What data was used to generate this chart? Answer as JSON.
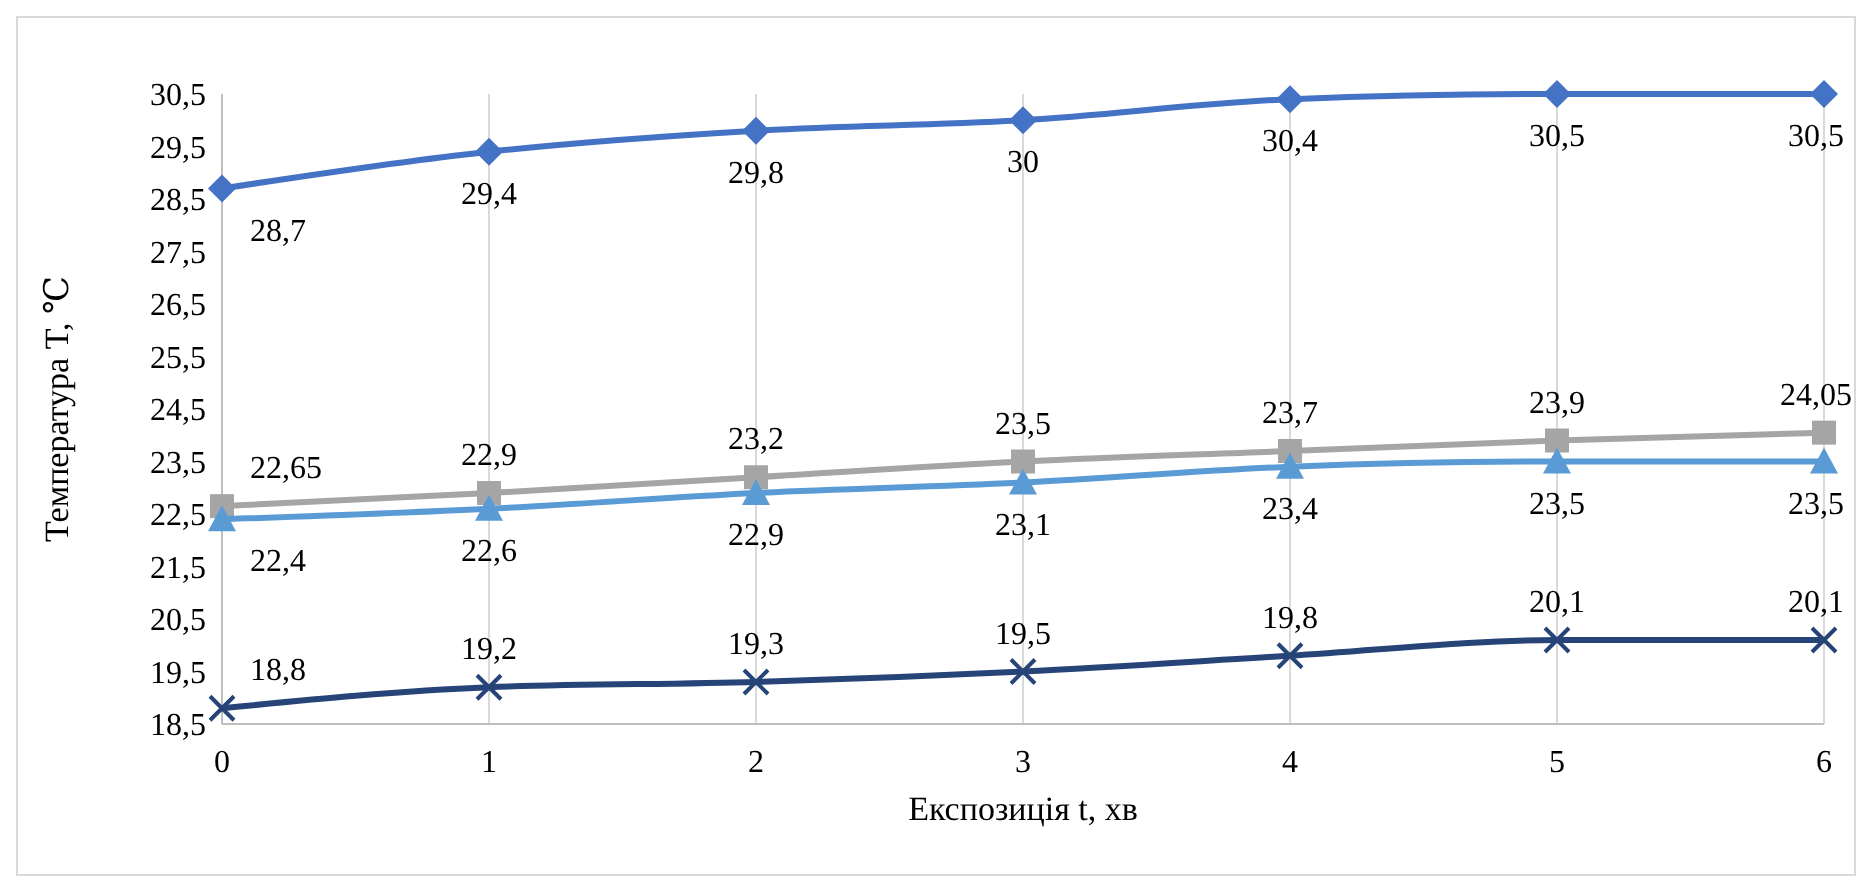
{
  "chart_data": {
    "type": "line",
    "xlabel": "Експозиція t, хв",
    "ylabel": "Температура T, ℃",
    "x": [
      0,
      1,
      2,
      3,
      4,
      5,
      6
    ],
    "xlim": [
      0,
      6
    ],
    "xticks": [
      0,
      1,
      2,
      3,
      4,
      5,
      6
    ],
    "ylim": [
      18.5,
      30.5
    ],
    "yticks": [
      {
        "value": 18.5,
        "label": "18,5"
      },
      {
        "value": 19.5,
        "label": "19,5"
      },
      {
        "value": 20.5,
        "label": "20,5"
      },
      {
        "value": 21.5,
        "label": "21,5"
      },
      {
        "value": 22.5,
        "label": "22,5"
      },
      {
        "value": 23.5,
        "label": "23,5"
      },
      {
        "value": 24.5,
        "label": "24,5"
      },
      {
        "value": 25.5,
        "label": "25,5"
      },
      {
        "value": 26.5,
        "label": "26,5"
      },
      {
        "value": 27.5,
        "label": "27,5"
      },
      {
        "value": 28.5,
        "label": "28,5"
      },
      {
        "value": 29.5,
        "label": "29,5"
      },
      {
        "value": 30.5,
        "label": "30,5"
      }
    ],
    "grid": "x",
    "series": [
      {
        "color": "#4472c4",
        "marker": "diamond",
        "values": [
          28.7,
          29.4,
          29.8,
          30,
          30.4,
          30.5,
          30.5
        ],
        "value_labels": [
          "28,7",
          "29,4",
          "29,8",
          "30",
          "30,4",
          "30,5",
          "30,5"
        ]
      },
      {
        "color": "#a5a5a5",
        "marker": "square",
        "values": [
          22.65,
          22.9,
          23.2,
          23.5,
          23.7,
          23.9,
          24.05
        ],
        "value_labels": [
          "22,65",
          "22,9",
          "23,2",
          "23,5",
          "23,7",
          "23,9",
          "24,05"
        ]
      },
      {
        "color": "#5b9bd5",
        "marker": "triangle",
        "values": [
          22.4,
          22.6,
          22.9,
          23.1,
          23.4,
          23.5,
          23.5
        ],
        "value_labels": [
          "22,4",
          "22,6",
          "22,9",
          "23,1",
          "23,4",
          "23,5",
          "23,5"
        ]
      },
      {
        "color": "#264478",
        "marker": "cross",
        "values": [
          18.8,
          19.2,
          19.3,
          19.5,
          19.8,
          20.1,
          20.1
        ],
        "value_labels": [
          "18,8",
          "19,2",
          "19,3",
          "19,5",
          "19,8",
          "20,1",
          "20,1"
        ]
      }
    ]
  }
}
